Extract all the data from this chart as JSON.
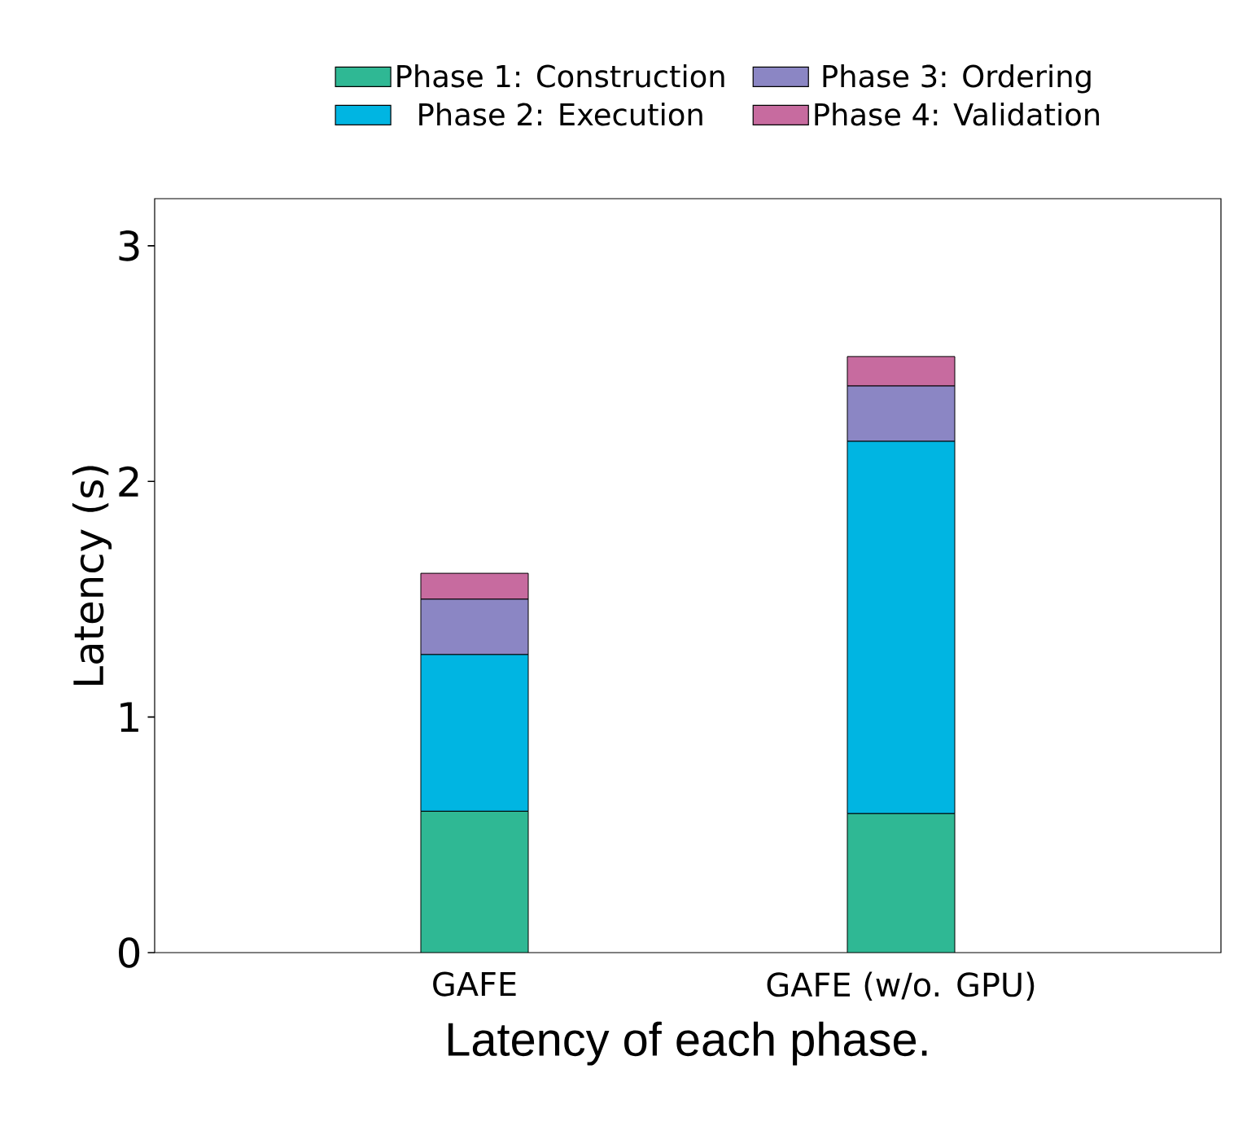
{
  "chart_data": {
    "type": "bar",
    "stacked": true,
    "xlabel": "Latency of each phase.",
    "ylabel": "Latency (s)",
    "categories": [
      "GAFE",
      "GAFE (w/o. GPU)"
    ],
    "series": [
      {
        "name": "Phase 1: Construction",
        "color": "#2fb894",
        "values": [
          0.6,
          0.59
        ]
      },
      {
        "name": "Phase 2: Execution",
        "color": "#00b5e2",
        "values": [
          0.665,
          1.58
        ]
      },
      {
        "name": "Phase 3: Ordering",
        "color": "#8b86c4",
        "values": [
          0.235,
          0.235
        ]
      },
      {
        "name": "Phase 4: Validation",
        "color": "#c76b9f",
        "values": [
          0.11,
          0.125
        ]
      }
    ],
    "ylim": [
      0,
      3.2
    ],
    "yticks": [
      0,
      1,
      2,
      3
    ],
    "legend": "top",
    "grid": false
  }
}
